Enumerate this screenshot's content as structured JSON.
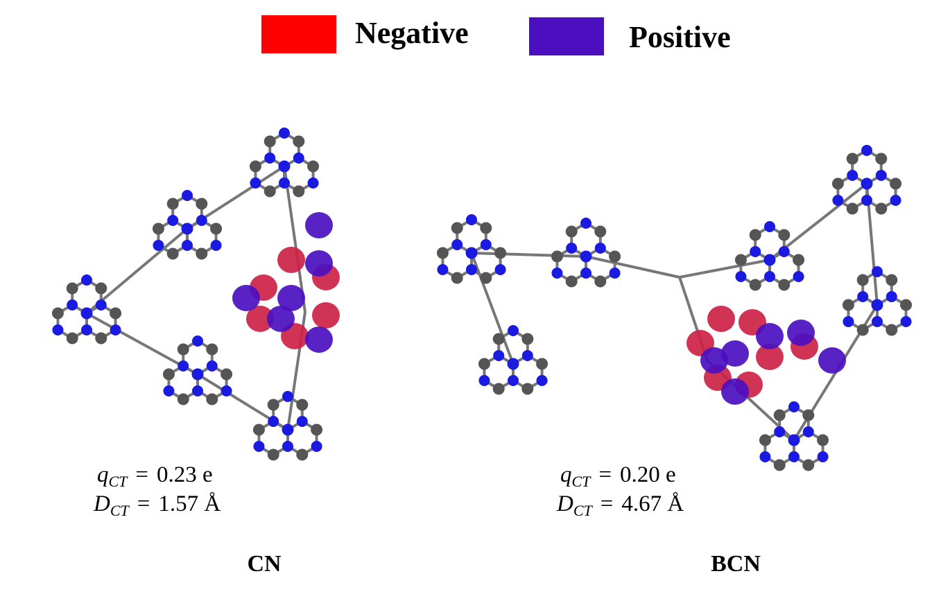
{
  "legend": [
    {
      "label": "Negative",
      "color": "#ff0000"
    },
    {
      "label": "Positive",
      "color": "#4b0fbf"
    }
  ],
  "panels": [
    {
      "label": "CN",
      "q_ct": {
        "symbol": "q",
        "subscript": "CT",
        "relation": "=",
        "value": "0.23 e"
      },
      "d_ct": {
        "symbol": "D",
        "subscript": "CT",
        "relation": "=",
        "value": "1.57 Å"
      }
    },
    {
      "label": "BCN",
      "q_ct": {
        "symbol": "q",
        "subscript": "CT",
        "relation": "=",
        "value": "0.20 e"
      },
      "d_ct": {
        "symbol": "D",
        "subscript": "CT",
        "relation": "=",
        "value": "4.67 Å"
      }
    }
  ]
}
